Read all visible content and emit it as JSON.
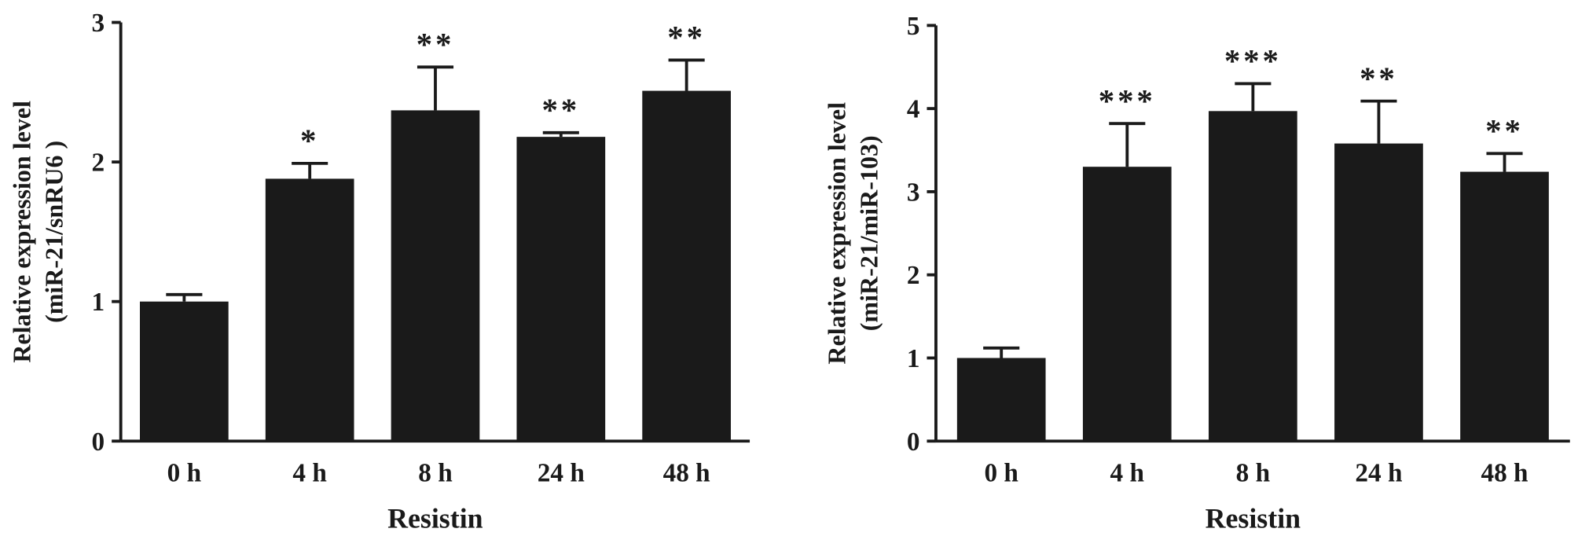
{
  "chart_data": [
    {
      "type": "bar",
      "ylabel": [
        "Relative expression level",
        "(miR-21/snRU6 )"
      ],
      "xlabel": "Resistin",
      "categories": [
        "0 h",
        "4 h",
        "8 h",
        "24 h",
        "48 h"
      ],
      "values": [
        1.0,
        1.88,
        2.37,
        2.18,
        2.51
      ],
      "errors": [
        0.05,
        0.11,
        0.31,
        0.03,
        0.22
      ],
      "annotations": [
        null,
        "*",
        "**",
        "**",
        "**"
      ],
      "color": "#1a1a1a",
      "ylim": [
        0,
        3
      ],
      "yticks": [
        0,
        1,
        2,
        3
      ]
    },
    {
      "type": "bar",
      "ylabel": [
        "Relative expression level",
        "(miR-21/miR-103)"
      ],
      "xlabel": "Resistin",
      "categories": [
        "0 h",
        "4 h",
        "8 h",
        "24 h",
        "48 h"
      ],
      "values": [
        1.0,
        3.3,
        3.97,
        3.58,
        3.24
      ],
      "errors": [
        0.12,
        0.52,
        0.33,
        0.51,
        0.22
      ],
      "annotations": [
        null,
        "***",
        "***",
        "**",
        "**"
      ],
      "color": "#1a1a1a",
      "ylim": [
        0,
        5
      ],
      "yticks": [
        0,
        1,
        2,
        3,
        4,
        5
      ]
    }
  ]
}
